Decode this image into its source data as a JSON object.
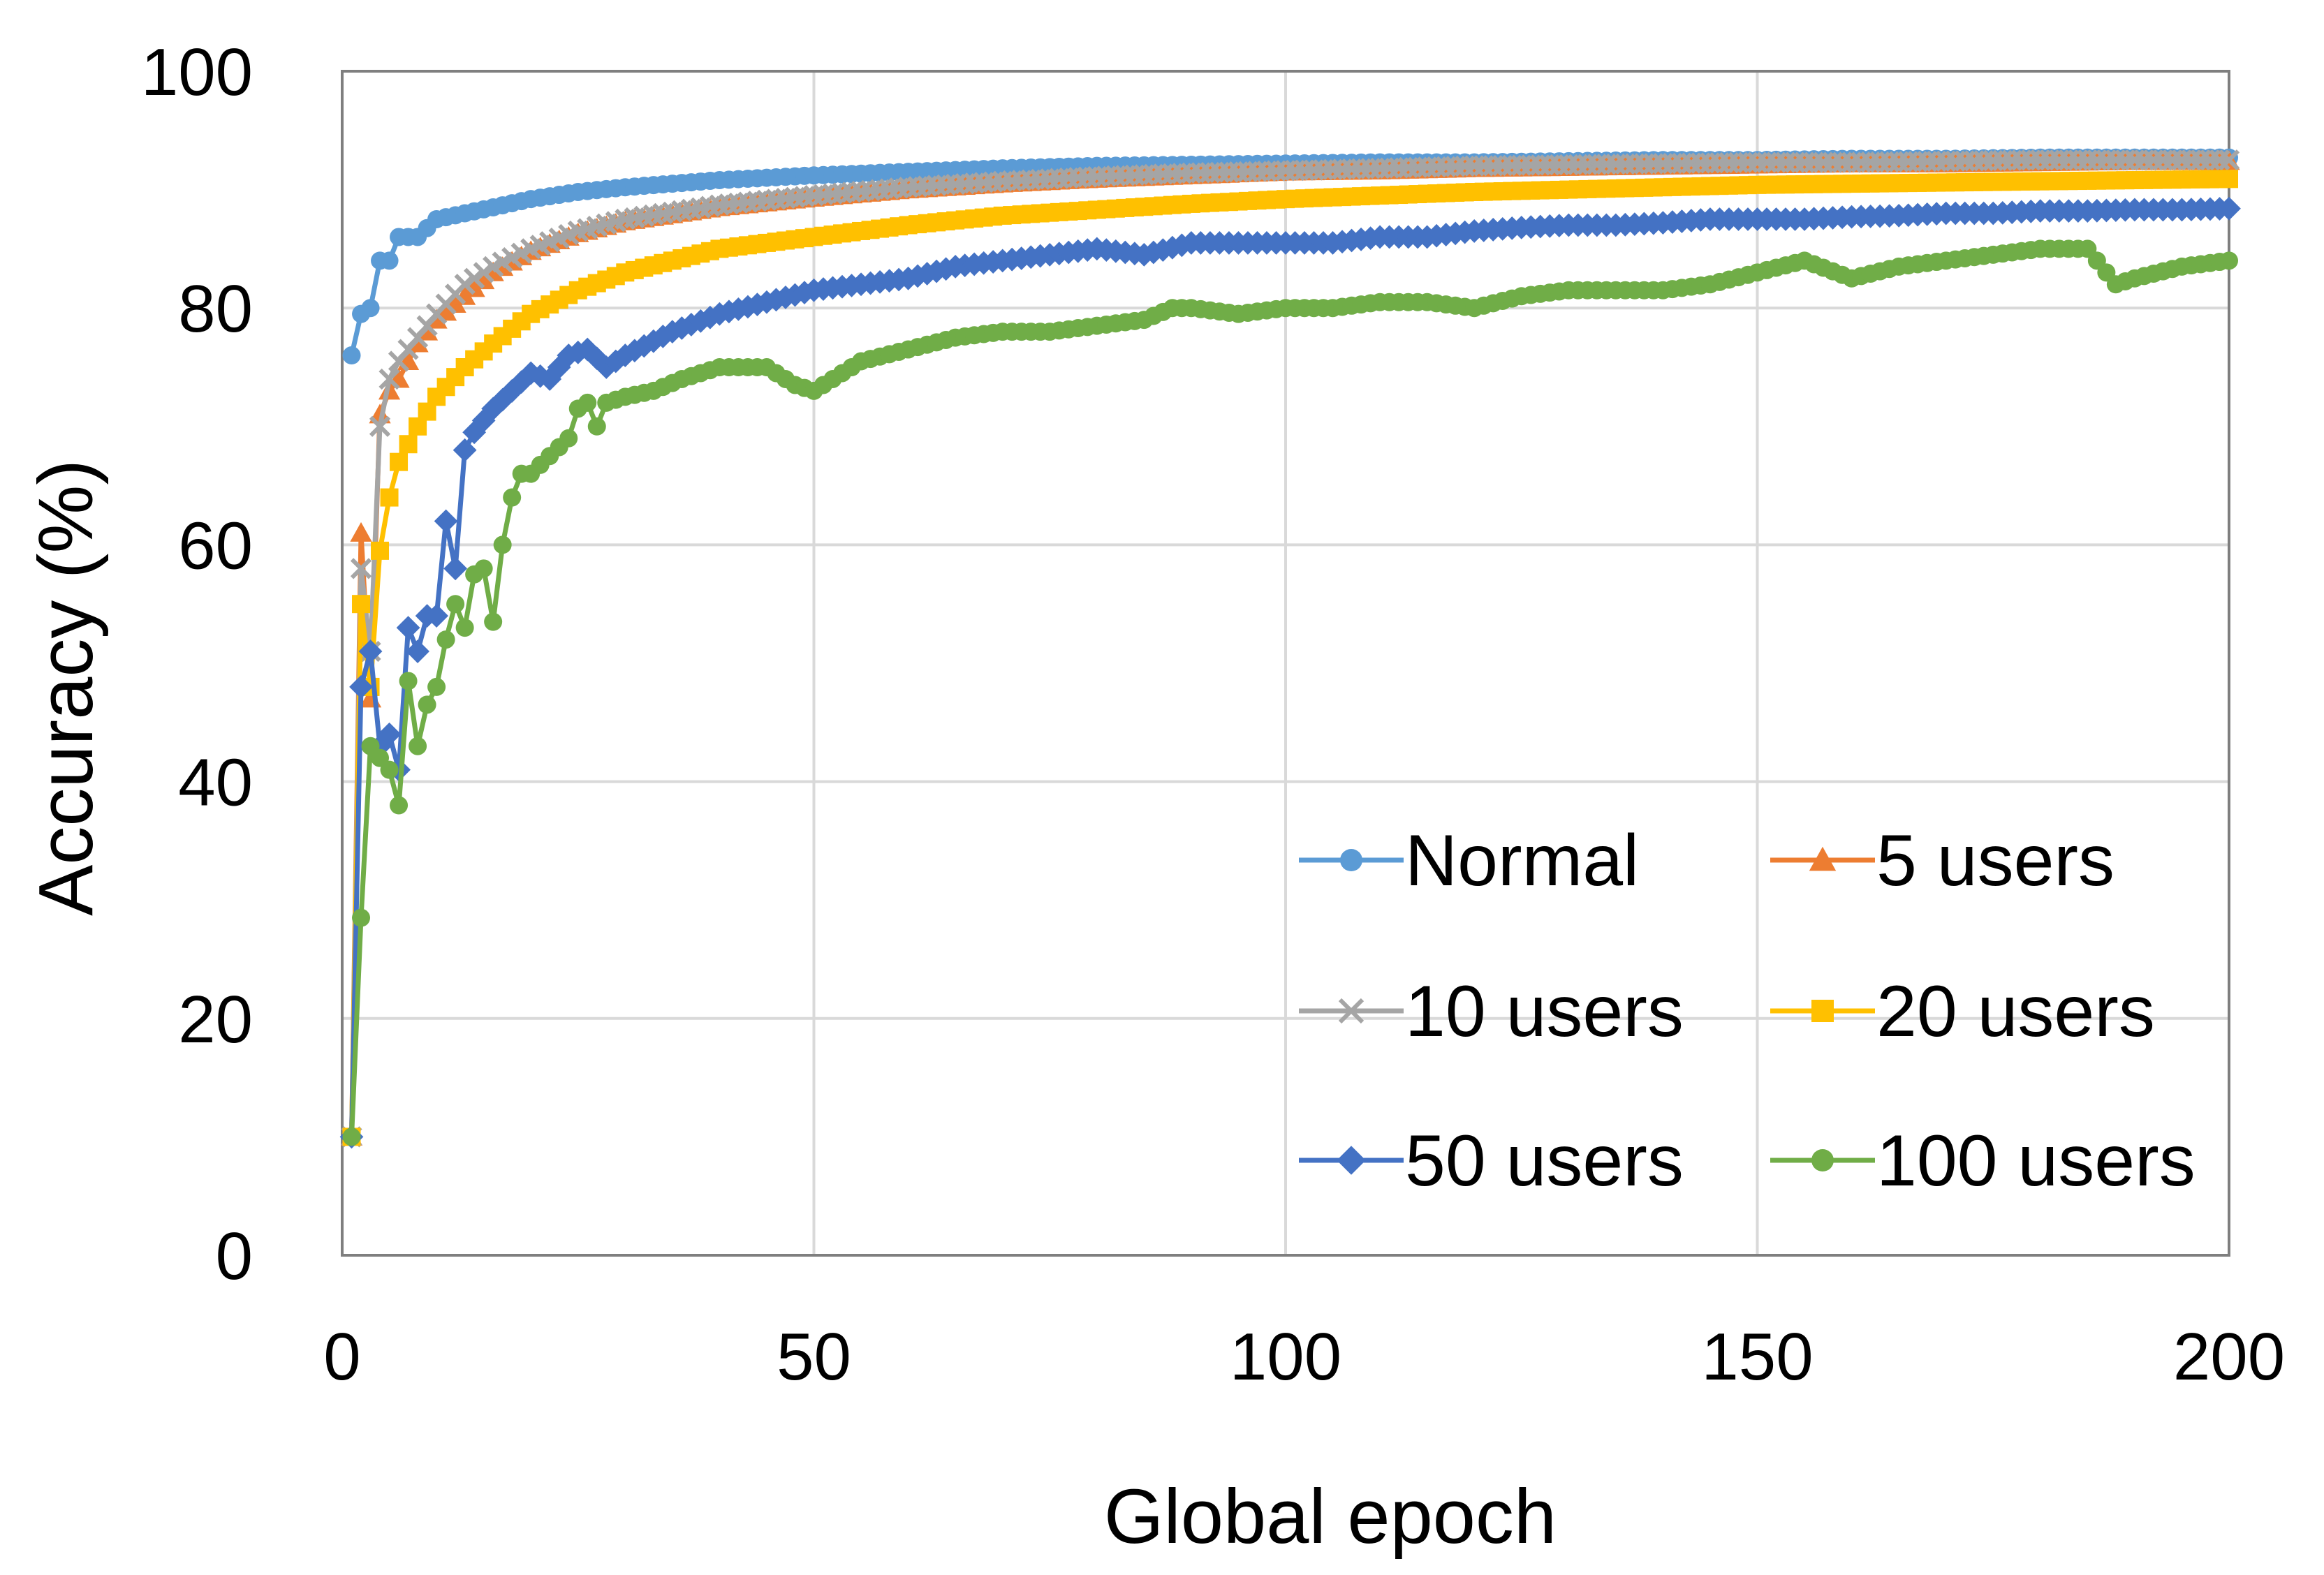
{
  "chart_data": {
    "type": "line",
    "title": "",
    "xlabel": "Global epoch",
    "ylabel": "Accuracy (%)",
    "xlim": [
      0,
      200
    ],
    "ylim": [
      0,
      100
    ],
    "xticks": [
      0,
      50,
      100,
      150,
      200
    ],
    "yticks": [
      0,
      20,
      40,
      60,
      80,
      100
    ],
    "grid": true,
    "legend_position": "bottom-right",
    "series": [
      {
        "name": "Normal",
        "color": "#5B9BD5",
        "marker": "circle",
        "points": [
          [
            1,
            76
          ],
          [
            2,
            79.5
          ],
          [
            3,
            80
          ],
          [
            4,
            84
          ],
          [
            5,
            84
          ],
          [
            6,
            86
          ],
          [
            8,
            86
          ],
          [
            10,
            87.5
          ],
          [
            13,
            88
          ],
          [
            16,
            88.5
          ],
          [
            20,
            89.2
          ],
          [
            25,
            89.8
          ],
          [
            30,
            90.2
          ],
          [
            40,
            90.8
          ],
          [
            50,
            91.2
          ],
          [
            60,
            91.5
          ],
          [
            70,
            91.8
          ],
          [
            80,
            92
          ],
          [
            90,
            92.1
          ],
          [
            100,
            92.2
          ],
          [
            110,
            92.3
          ],
          [
            120,
            92.3
          ],
          [
            130,
            92.4
          ],
          [
            140,
            92.5
          ],
          [
            150,
            92.5
          ],
          [
            160,
            92.6
          ],
          [
            170,
            92.6
          ],
          [
            180,
            92.7
          ],
          [
            190,
            92.7
          ],
          [
            200,
            92.7
          ]
        ]
      },
      {
        "name": "5 users",
        "color": "#ED7D31",
        "marker": "triangle",
        "points": [
          [
            1,
            10
          ],
          [
            2,
            61
          ],
          [
            3,
            47
          ],
          [
            4,
            71
          ],
          [
            5,
            73
          ],
          [
            6,
            74
          ],
          [
            8,
            77
          ],
          [
            10,
            79
          ],
          [
            13,
            81
          ],
          [
            16,
            83
          ],
          [
            20,
            84.8
          ],
          [
            25,
            86.3
          ],
          [
            30,
            87.3
          ],
          [
            40,
            88.5
          ],
          [
            50,
            89.3
          ],
          [
            60,
            90
          ],
          [
            70,
            90.5
          ],
          [
            80,
            90.9
          ],
          [
            90,
            91.2
          ],
          [
            100,
            91.5
          ],
          [
            110,
            91.6
          ],
          [
            120,
            91.8
          ],
          [
            130,
            91.9
          ],
          [
            140,
            92
          ],
          [
            150,
            92.1
          ],
          [
            160,
            92.2
          ],
          [
            170,
            92.2
          ],
          [
            180,
            92.3
          ],
          [
            190,
            92.4
          ],
          [
            200,
            92.4
          ]
        ]
      },
      {
        "name": "10 users",
        "color": "#A5A5A5",
        "marker": "x",
        "points": [
          [
            1,
            10
          ],
          [
            2,
            58
          ],
          [
            3,
            51
          ],
          [
            4,
            70
          ],
          [
            5,
            74
          ],
          [
            6,
            75.5
          ],
          [
            8,
            77.5
          ],
          [
            10,
            79.5
          ],
          [
            13,
            82
          ],
          [
            16,
            83.5
          ],
          [
            20,
            85
          ],
          [
            25,
            86.5
          ],
          [
            30,
            87.5
          ],
          [
            40,
            88.7
          ],
          [
            50,
            89.5
          ],
          [
            60,
            90.2
          ],
          [
            70,
            90.7
          ],
          [
            80,
            91.1
          ],
          [
            90,
            91.4
          ],
          [
            100,
            91.6
          ],
          [
            110,
            91.8
          ],
          [
            120,
            92
          ],
          [
            130,
            92.1
          ],
          [
            140,
            92.2
          ],
          [
            150,
            92.3
          ],
          [
            160,
            92.3
          ],
          [
            170,
            92.4
          ],
          [
            180,
            92.5
          ],
          [
            190,
            92.5
          ],
          [
            200,
            92.5
          ]
        ]
      },
      {
        "name": "20 users",
        "color": "#FFC000",
        "marker": "square",
        "points": [
          [
            1,
            10
          ],
          [
            2,
            55
          ],
          [
            3,
            48
          ],
          [
            4,
            59.5
          ],
          [
            5,
            64
          ],
          [
            6,
            67
          ],
          [
            8,
            70
          ],
          [
            10,
            72.5
          ],
          [
            13,
            75
          ],
          [
            16,
            77
          ],
          [
            20,
            79.5
          ],
          [
            25,
            81.5
          ],
          [
            30,
            83
          ],
          [
            40,
            85
          ],
          [
            50,
            86
          ],
          [
            60,
            87
          ],
          [
            70,
            87.8
          ],
          [
            80,
            88.3
          ],
          [
            90,
            88.8
          ],
          [
            100,
            89.2
          ],
          [
            110,
            89.5
          ],
          [
            120,
            89.8
          ],
          [
            130,
            90
          ],
          [
            140,
            90.2
          ],
          [
            150,
            90.4
          ],
          [
            160,
            90.5
          ],
          [
            170,
            90.6
          ],
          [
            180,
            90.7
          ],
          [
            190,
            90.8
          ],
          [
            200,
            90.9
          ]
        ]
      },
      {
        "name": "50 users",
        "color": "#4472C4",
        "marker": "diamond",
        "points": [
          [
            1,
            10
          ],
          [
            2,
            48
          ],
          [
            3,
            51
          ],
          [
            4,
            43
          ],
          [
            5,
            44
          ],
          [
            6,
            41
          ],
          [
            7,
            53
          ],
          [
            8,
            51
          ],
          [
            9,
            54
          ],
          [
            10,
            54
          ],
          [
            11,
            62
          ],
          [
            12,
            58
          ],
          [
            13,
            68
          ],
          [
            14,
            69.5
          ],
          [
            16,
            71.5
          ],
          [
            18,
            73
          ],
          [
            20,
            74.5
          ],
          [
            22,
            74
          ],
          [
            24,
            76
          ],
          [
            26,
            76.5
          ],
          [
            28,
            75
          ],
          [
            30,
            76
          ],
          [
            35,
            78
          ],
          [
            40,
            79.5
          ],
          [
            45,
            80.5
          ],
          [
            50,
            81.5
          ],
          [
            55,
            82
          ],
          [
            60,
            82.5
          ],
          [
            65,
            83.5
          ],
          [
            70,
            84
          ],
          [
            75,
            84.5
          ],
          [
            80,
            85
          ],
          [
            85,
            84.5
          ],
          [
            90,
            85.5
          ],
          [
            95,
            85.5
          ],
          [
            100,
            85.5
          ],
          [
            105,
            85.5
          ],
          [
            110,
            86
          ],
          [
            115,
            86
          ],
          [
            120,
            86.5
          ],
          [
            125,
            86.8
          ],
          [
            130,
            87
          ],
          [
            135,
            87
          ],
          [
            140,
            87.2
          ],
          [
            145,
            87.5
          ],
          [
            150,
            87.5
          ],
          [
            155,
            87.5
          ],
          [
            160,
            87.7
          ],
          [
            165,
            87.8
          ],
          [
            170,
            88
          ],
          [
            175,
            88
          ],
          [
            180,
            88.2
          ],
          [
            185,
            88.2
          ],
          [
            190,
            88.3
          ],
          [
            195,
            88.3
          ],
          [
            200,
            88.4
          ]
        ]
      },
      {
        "name": "100 users",
        "color": "#70AD47",
        "marker": "circle",
        "points": [
          [
            1,
            10
          ],
          [
            2,
            28.5
          ],
          [
            3,
            43
          ],
          [
            4,
            42
          ],
          [
            5,
            41
          ],
          [
            6,
            38
          ],
          [
            7,
            48.5
          ],
          [
            8,
            43
          ],
          [
            9,
            46.5
          ],
          [
            10,
            48
          ],
          [
            11,
            52
          ],
          [
            12,
            55
          ],
          [
            13,
            53
          ],
          [
            14,
            57.5
          ],
          [
            15,
            58
          ],
          [
            16,
            53.5
          ],
          [
            17,
            60
          ],
          [
            18,
            64
          ],
          [
            19,
            66
          ],
          [
            20,
            66
          ],
          [
            22,
            67.5
          ],
          [
            24,
            69
          ],
          [
            25,
            71.5
          ],
          [
            26,
            72
          ],
          [
            27,
            70
          ],
          [
            28,
            72
          ],
          [
            30,
            72.5
          ],
          [
            33,
            73
          ],
          [
            36,
            74
          ],
          [
            40,
            75
          ],
          [
            45,
            75
          ],
          [
            48,
            73.5
          ],
          [
            50,
            73
          ],
          [
            52,
            74
          ],
          [
            55,
            75.5
          ],
          [
            60,
            76.5
          ],
          [
            65,
            77.5
          ],
          [
            70,
            78
          ],
          [
            75,
            78
          ],
          [
            80,
            78.5
          ],
          [
            85,
            79
          ],
          [
            88,
            80
          ],
          [
            90,
            80
          ],
          [
            95,
            79.5
          ],
          [
            100,
            80
          ],
          [
            105,
            80
          ],
          [
            110,
            80.5
          ],
          [
            115,
            80.5
          ],
          [
            120,
            80
          ],
          [
            125,
            81
          ],
          [
            130,
            81.5
          ],
          [
            135,
            81.5
          ],
          [
            140,
            81.5
          ],
          [
            145,
            82
          ],
          [
            150,
            83
          ],
          [
            155,
            84
          ],
          [
            160,
            82.5
          ],
          [
            165,
            83.5
          ],
          [
            170,
            84
          ],
          [
            175,
            84.5
          ],
          [
            180,
            85
          ],
          [
            185,
            85
          ],
          [
            188,
            82
          ],
          [
            190,
            82.5
          ],
          [
            195,
            83.5
          ],
          [
            200,
            84
          ]
        ]
      }
    ]
  }
}
